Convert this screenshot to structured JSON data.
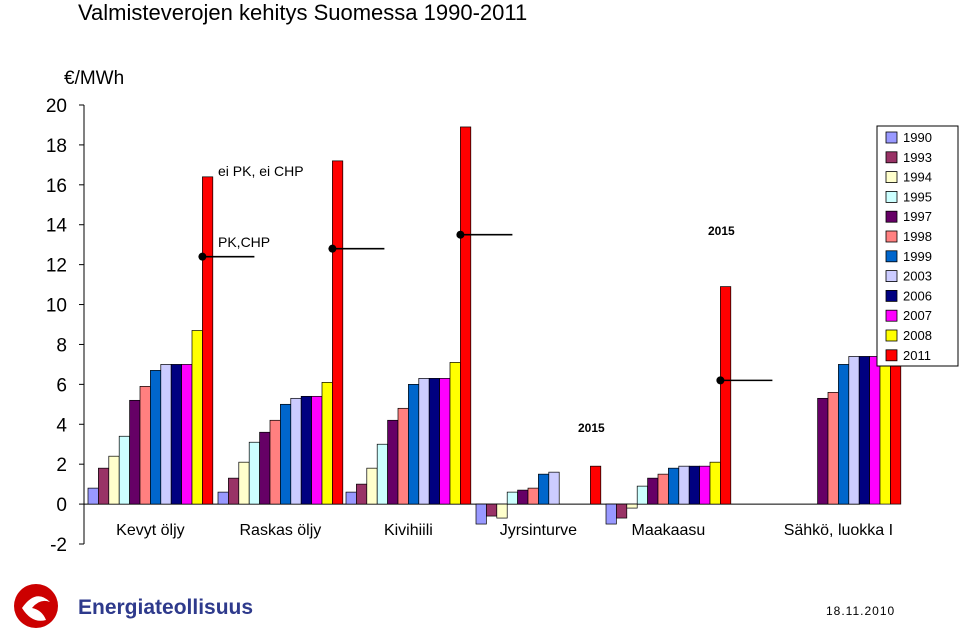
{
  "chart_data": {
    "type": "bar",
    "title": "Valmisteverojen kehitys Suomessa 1990-2011",
    "ylabel": "€/MWh",
    "ylim": [
      -2,
      20
    ],
    "yticks": [
      -2,
      0,
      2,
      4,
      6,
      8,
      10,
      12,
      14,
      16,
      18,
      20
    ],
    "grid": false,
    "legend_position": "right",
    "categories": [
      "Kevyt öljy",
      "Raskas öljy",
      "Kivihiili",
      "Jyrsinturve",
      "Maakaasu",
      "Sähkö, luokka I"
    ],
    "series": [
      {
        "name": "1990",
        "color": "#9999ff",
        "values": [
          0.8,
          0.6,
          0.6,
          -1.0,
          -1.0,
          null
        ]
      },
      {
        "name": "1993",
        "color": "#993366",
        "values": [
          1.8,
          1.3,
          1.0,
          -0.6,
          -0.7,
          null
        ]
      },
      {
        "name": "1994",
        "color": "#ffffcc",
        "values": [
          2.4,
          2.1,
          1.8,
          -0.7,
          -0.2,
          null
        ]
      },
      {
        "name": "1995",
        "color": "#ccffff",
        "values": [
          3.4,
          3.1,
          3.0,
          0.6,
          0.9,
          null
        ]
      },
      {
        "name": "1997",
        "color": "#660066",
        "values": [
          5.2,
          3.6,
          4.2,
          0.7,
          1.3,
          5.3
        ]
      },
      {
        "name": "1998",
        "color": "#ff8080",
        "values": [
          5.9,
          4.2,
          4.8,
          0.8,
          1.5,
          5.6
        ]
      },
      {
        "name": "1999",
        "color": "#0066cc",
        "values": [
          6.7,
          5.0,
          6.0,
          1.5,
          1.8,
          7.0
        ]
      },
      {
        "name": "2003",
        "color": "#ccccff",
        "values": [
          7.0,
          5.3,
          6.3,
          1.6,
          1.9,
          7.4
        ]
      },
      {
        "name": "2006",
        "color": "#000080",
        "values": [
          7.0,
          5.4,
          6.3,
          null,
          1.9,
          7.4
        ]
      },
      {
        "name": "2007",
        "color": "#ff00ff",
        "values": [
          7.0,
          5.4,
          6.3,
          null,
          1.9,
          7.4
        ]
      },
      {
        "name": "2008",
        "color": "#ffff00",
        "values": [
          8.7,
          6.1,
          7.1,
          null,
          2.1,
          8.8
        ]
      },
      {
        "name": "2011",
        "color": "#ff0000",
        "values": [
          16.4,
          17.2,
          18.9,
          1.9,
          10.9,
          17.1
        ]
      }
    ],
    "markers_2015": [
      {
        "category": "Kevyt öljy",
        "value": 12.4
      },
      {
        "category": "Raskas öljy",
        "value": 12.8
      },
      {
        "category": "Kivihiili",
        "value": 13.5
      },
      {
        "category": "Maakaasu",
        "value": 6.2
      }
    ],
    "annotations": {
      "ei_pk_chp": "ei PK, ei CHP",
      "pk_chp": "PK,CHP",
      "label_2015_a": "2015",
      "label_2015_b": "2015"
    }
  },
  "footer": {
    "brand": "Energiateollisuus",
    "date": "18.11.2010"
  }
}
